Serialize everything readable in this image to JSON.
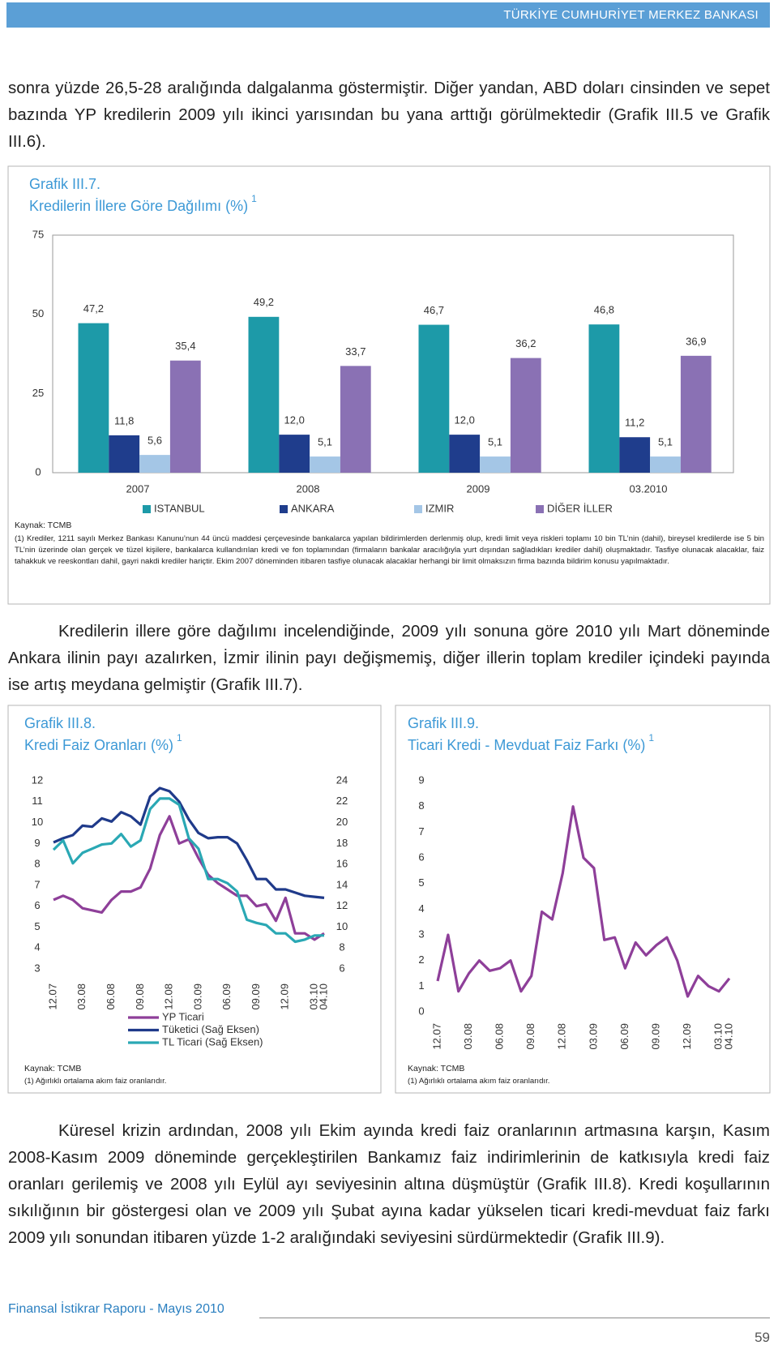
{
  "header": "TÜRKİYE CUMHURİYET MERKEZ BANKASI",
  "paragraphs": [
    "sonra yüzde 26,5-28 aralığında dalgalanma göstermiştir. Diğer yandan, ABD doları cinsinden ve sepet bazında YP kredilerin 2009 yılı ikinci yarısından bu yana arttığı görülmektedir (Grafik III.5 ve Grafik III.6).",
    "Kredilerin illere göre dağılımı incelendiğinde, 2009 yılı sonuna göre 2010 yılı Mart döneminde Ankara ilinin payı azalırken, İzmir ilinin payı değişmemiş, diğer illerin toplam krediler içindeki payında ise artış meydana gelmiştir (Grafik III.7).",
    "Küresel krizin ardından, 2008 yılı Ekim ayında kredi faiz oranlarının artmasına karşın, Kasım 2008-Kasım 2009 döneminde gerçekleştirilen Bankamız faiz indirimlerinin de katkısıyla kredi faiz oranları gerilemiş ve 2008 yılı Eylül ayı seviyesinin altına düşmüştür (Grafik III.8). Kredi koşullarının sıkılığının bir göstergesi olan ve 2009 yılı Şubat ayına kadar yükselen ticari kredi-mevduat faiz farkı 2009 yılı sonundan itibaren yüzde 1-2 aralığındaki seviyesini sürdürmektedir (Grafik III.9)."
  ],
  "chart_data": [
    {
      "type": "bar",
      "title": "Grafik III.7.",
      "subtitle": "Kredilerin İllere Göre Dağılımı (%)",
      "footnote_mark": "1",
      "categories": [
        "2007",
        "2008",
        "2009",
        "03.2010"
      ],
      "series": [
        {
          "name": "ISTANBUL",
          "color": "#1d9aa8",
          "values": [
            47.2,
            49.2,
            46.7,
            46.8
          ],
          "value_labels": [
            "47,2",
            "49,2",
            "46,7",
            "46,8"
          ]
        },
        {
          "name": "ANKARA",
          "color": "#1f3d8c",
          "values": [
            11.8,
            12.0,
            12.0,
            11.2
          ],
          "value_labels": [
            "11,8",
            "12,0",
            "12,0",
            "11,2"
          ]
        },
        {
          "name": "IZMIR",
          "color": "#a4c6e6",
          "values": [
            5.6,
            5.1,
            5.1,
            5.1
          ],
          "value_labels": [
            "5,6",
            "5,1",
            "5,1",
            "5,1"
          ]
        },
        {
          "name": "DİĞER İLLER",
          "color": "#8a71b4",
          "values": [
            35.4,
            33.7,
            36.2,
            36.9
          ],
          "value_labels": [
            "35,4",
            "33,7",
            "36,2",
            "36,9"
          ]
        }
      ],
      "ylim": [
        0,
        75
      ],
      "yticks": [
        0,
        25,
        50,
        75
      ],
      "grid": false,
      "legend": "bottom",
      "source": "Kaynak: TCMB",
      "note": "(1) Krediler, 1211 sayılı Merkez Bankası Kanunu’nun 44 üncü maddesi çerçevesinde bankalarca yapılan bildirimlerden derlenmiş olup, kredi limit veya riskleri toplamı 10 bin TL’nin (dahil), bireysel kredilerde ise 5 bin TL’nin üzerinde olan gerçek ve tüzel kişilere, bankalarca kullandırılan kredi ve fon toplamından (firmaların bankalar aracılığıyla yurt dışından sağladıkları krediler dahil) oluşmaktadır. Tasfiye olunacak alacaklar, faiz tahakkuk ve reeskontları dahil, gayri nakdi krediler hariçtir. Ekim 2007 döneminden itibaren tasfiye olunacak alacaklar herhangi bir limit olmaksızın firma bazında bildirim konusu yapılmaktadır."
    },
    {
      "type": "line",
      "title": "Grafik III.8.",
      "subtitle": "Kredi Faiz Oranları (%)",
      "footnote_mark": "1",
      "categories": [
        "12.07",
        null,
        null,
        "03.08",
        null,
        null,
        "06.08",
        null,
        null,
        "09.08",
        null,
        null,
        "12.08",
        null,
        null,
        "03.09",
        null,
        null,
        "06.09",
        null,
        null,
        "09.09",
        null,
        null,
        "12.09",
        null,
        null,
        "03.10",
        "04.10"
      ],
      "series": [
        {
          "name": "YP Ticari",
          "color": "#8e3f99",
          "values": [
            6.3,
            6.5,
            6.3,
            5.9,
            5.8,
            5.7,
            6.3,
            6.7,
            6.7,
            6.9,
            7.8,
            9.4,
            10.3,
            9.0,
            9.2,
            8.3,
            7.5,
            7.1,
            6.8,
            6.5,
            6.5,
            6.0,
            6.1,
            5.3,
            6.4,
            4.7,
            4.7,
            4.4,
            4.7
          ]
        },
        {
          "name": "Tüketici (Sağ Eksen)",
          "color": "#1f3a8a",
          "axis": "y2",
          "values": [
            18.1,
            18.5,
            18.8,
            19.7,
            19.6,
            20.4,
            20.1,
            21.0,
            20.6,
            19.8,
            22.5,
            23.3,
            23.0,
            22.0,
            20.3,
            19.0,
            18.5,
            18.6,
            18.6,
            18.0,
            16.4,
            14.6,
            14.6,
            13.6,
            13.6,
            13.3,
            13.0,
            12.9,
            12.8
          ]
        },
        {
          "name": "TL Ticari (Sağ Eksen)",
          "color": "#2aa8b4",
          "axis": "y2",
          "values": [
            17.4,
            18.3,
            16.1,
            17.1,
            17.5,
            17.9,
            18.0,
            18.9,
            17.7,
            18.3,
            21.3,
            22.3,
            22.3,
            21.7,
            18.5,
            17.5,
            14.6,
            14.6,
            14.2,
            13.4,
            10.7,
            10.4,
            10.2,
            9.4,
            9.4,
            8.6,
            8.8,
            9.2,
            9.2
          ]
        }
      ],
      "ylim": [
        3,
        12
      ],
      "yticks": [
        3,
        4,
        5,
        6,
        7,
        8,
        9,
        10,
        11,
        12
      ],
      "y2lim": [
        6,
        24
      ],
      "y2ticks": [
        6,
        8,
        10,
        12,
        14,
        16,
        18,
        20,
        22,
        24
      ],
      "legend": "bottom",
      "source": "Kaynak: TCMB",
      "note": "(1) Ağırlıklı ortalama akım faiz oranlarıdır."
    },
    {
      "type": "line",
      "title": "Grafik III.9.",
      "subtitle": "Ticari Kredi - Mevduat Faiz Farkı (%)",
      "footnote_mark": "1",
      "categories": [
        "12.07",
        null,
        null,
        "03.08",
        null,
        null,
        "06.08",
        null,
        null,
        "09.08",
        null,
        null,
        "12.08",
        null,
        null,
        "03.09",
        null,
        null,
        "06.09",
        null,
        null,
        "09.09",
        null,
        null,
        "12.09",
        null,
        null,
        "03.10",
        "04.10"
      ],
      "series": [
        {
          "name": null,
          "color": "#8e3f99",
          "values": [
            1.2,
            3.0,
            0.8,
            1.5,
            2.0,
            1.6,
            1.7,
            2.0,
            0.8,
            1.4,
            3.9,
            3.6,
            5.4,
            8.0,
            6.0,
            5.6,
            2.8,
            2.9,
            1.7,
            2.7,
            2.2,
            2.6,
            2.9,
            2.0,
            0.6,
            1.4,
            1.0,
            0.8,
            1.3
          ]
        }
      ],
      "ylim": [
        0,
        9
      ],
      "yticks": [
        0,
        1,
        2,
        3,
        4,
        5,
        6,
        7,
        8,
        9
      ],
      "source": "Kaynak: TCMB",
      "note": "(1) Ağırlıklı ortalama akım faiz oranlarıdır."
    }
  ],
  "footer": {
    "title": "Finansal İstikrar Raporu - Mayıs 2010",
    "page": "59"
  }
}
